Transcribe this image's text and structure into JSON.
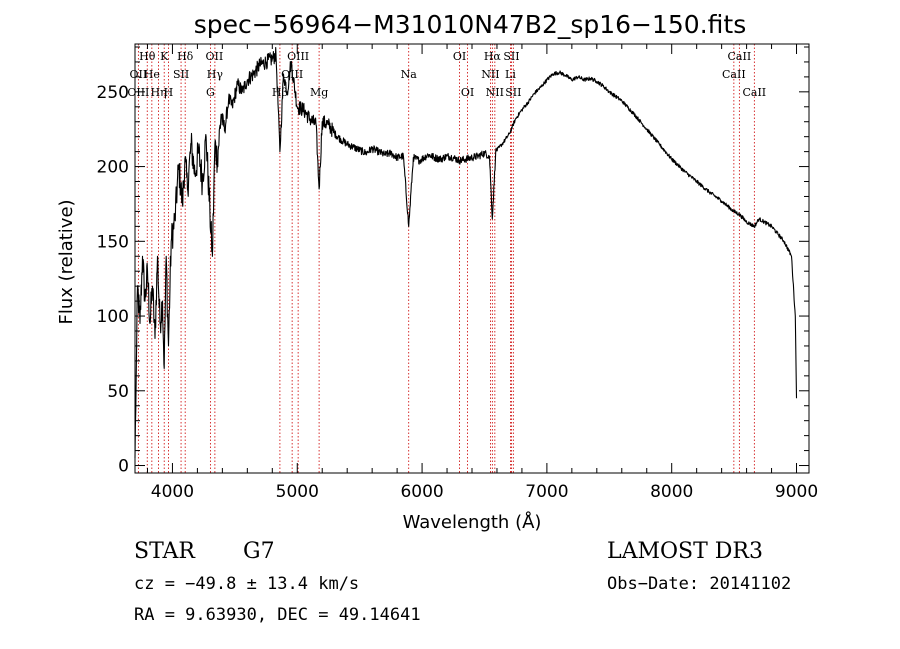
{
  "chart_data": {
    "type": "line",
    "title": "spec−56964−M31010N47B2_sp16−150.fits",
    "xlabel": "Wavelength (Å)",
    "ylabel": "Flux (relative)",
    "xlim": [
      3700,
      9100
    ],
    "ylim": [
      -5,
      282
    ],
    "xticks": [
      4000,
      5000,
      6000,
      7000,
      8000,
      9000
    ],
    "yticks": [
      0,
      50,
      100,
      150,
      200,
      250
    ],
    "series": [
      {
        "name": "flux",
        "x": [
          3700,
          3710,
          3720,
          3740,
          3760,
          3780,
          3800,
          3820,
          3840,
          3860,
          3880,
          3900,
          3920,
          3934,
          3950,
          3968,
          3990,
          4020,
          4050,
          4080,
          4100,
          4120,
          4150,
          4180,
          4210,
          4240,
          4270,
          4300,
          4320,
          4340,
          4360,
          4390,
          4420,
          4450,
          4480,
          4520,
          4560,
          4600,
          4650,
          4700,
          4750,
          4800,
          4830,
          4861,
          4890,
          4920,
          4950,
          5000,
          5050,
          5100,
          5150,
          5175,
          5200,
          5250,
          5300,
          5350,
          5400,
          5450,
          5500,
          5550,
          5600,
          5650,
          5700,
          5750,
          5800,
          5850,
          5893,
          5930,
          5980,
          6050,
          6100,
          6150,
          6200,
          6250,
          6300,
          6350,
          6400,
          6450,
          6500,
          6540,
          6563,
          6590,
          6620,
          6650,
          6700,
          6750,
          6800,
          6850,
          6900,
          6950,
          7000,
          7050,
          7100,
          7150,
          7200,
          7250,
          7300,
          7350,
          7400,
          7450,
          7500,
          7600,
          7700,
          7800,
          7900,
          8000,
          8100,
          8200,
          8300,
          8400,
          8498,
          8542,
          8600,
          8662,
          8700,
          8800,
          8900,
          8960,
          8990,
          9000
        ],
        "y": [
          5,
          60,
          120,
          95,
          140,
          110,
          130,
          95,
          120,
          85,
          140,
          95,
          110,
          65,
          140,
          80,
          150,
          165,
          200,
          175,
          205,
          185,
          215,
          195,
          210,
          190,
          220,
          170,
          140,
          215,
          205,
          235,
          225,
          245,
          240,
          255,
          250,
          258,
          262,
          268,
          270,
          272,
          275,
          210,
          262,
          250,
          270,
          240,
          238,
          232,
          228,
          185,
          230,
          228,
          222,
          218,
          215,
          213,
          211,
          209,
          212,
          210,
          208,
          209,
          206,
          207,
          160,
          206,
          204,
          208,
          206,
          205,
          207,
          206,
          204,
          205,
          206,
          207,
          209,
          207,
          165,
          210,
          213,
          216,
          222,
          232,
          238,
          243,
          249,
          253,
          258,
          262,
          263,
          261,
          258,
          260,
          258,
          259,
          257,
          254,
          250,
          244,
          235,
          225,
          215,
          205,
          197,
          190,
          183,
          177,
          170,
          168,
          163,
          160,
          165,
          160,
          150,
          140,
          100,
          45
        ]
      }
    ],
    "annotations": [
      {
        "label": "Hθ",
        "x": 3798,
        "row": 0
      },
      {
        "label": "OII",
        "x": 3727,
        "row": 1
      },
      {
        "label": "OIII",
        "x": 3727,
        "row": 2
      },
      {
        "label": "He",
        "x": 3835,
        "row": 1
      },
      {
        "label": "Hη",
        "x": 3889,
        "row": 2
      },
      {
        "label": "K",
        "x": 3934,
        "row": 0
      },
      {
        "label": "H",
        "x": 3968,
        "row": 2
      },
      {
        "label": "Hδ",
        "x": 4102,
        "row": 0
      },
      {
        "label": "SII",
        "x": 4069,
        "row": 1
      },
      {
        "label": "OII",
        "x": 4336,
        "row": 0
      },
      {
        "label": "Hγ",
        "x": 4340,
        "row": 1
      },
      {
        "label": "G",
        "x": 4304,
        "row": 2
      },
      {
        "label": "Hβ",
        "x": 4861,
        "row": 2
      },
      {
        "label": "OIII",
        "x": 5007,
        "row": 0
      },
      {
        "label": "OIII",
        "x": 4959,
        "row": 1
      },
      {
        "label": "Mg",
        "x": 5175,
        "row": 2
      },
      {
        "label": "Na",
        "x": 5893,
        "row": 1
      },
      {
        "label": "OI",
        "x": 6300,
        "row": 0
      },
      {
        "label": "OI",
        "x": 6364,
        "row": 2
      },
      {
        "label": "Hα",
        "x": 6563,
        "row": 0
      },
      {
        "label": "NII",
        "x": 6548,
        "row": 1
      },
      {
        "label": "NII",
        "x": 6583,
        "row": 2
      },
      {
        "label": "SII",
        "x": 6716,
        "row": 0
      },
      {
        "label": "Li",
        "x": 6708,
        "row": 1
      },
      {
        "label": "SII",
        "x": 6731,
        "row": 2
      },
      {
        "label": "CaII",
        "x": 8542,
        "row": 0
      },
      {
        "label": "CaII",
        "x": 8498,
        "row": 1
      },
      {
        "label": "CaII",
        "x": 8662,
        "row": 2
      }
    ],
    "line_markers": [
      3727,
      3798,
      3835,
      3889,
      3934,
      3968,
      4069,
      4102,
      4304,
      4340,
      4861,
      4959,
      5007,
      5175,
      5893,
      6300,
      6364,
      6548,
      6563,
      6583,
      6708,
      6716,
      6731,
      8498,
      8542,
      8662
    ]
  },
  "info": {
    "object_class": "STAR",
    "subclass": "G7",
    "survey": "LAMOST DR3",
    "cz": "cz = −49.8 ± 13.4 km/s",
    "obs_date": "Obs−Date: 20141102",
    "coords": "RA =   9.63930, DEC =  49.14641"
  },
  "colors": {
    "spectrum": "#000000",
    "marker": "#cc0000",
    "axis": "#000000"
  }
}
